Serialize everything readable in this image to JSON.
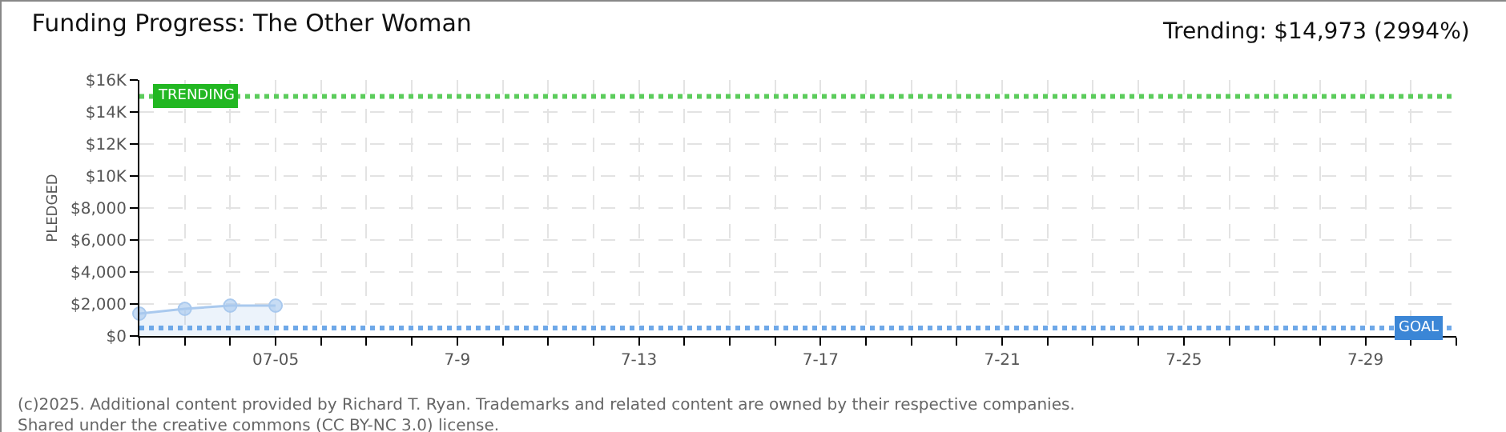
{
  "chart_data": {
    "type": "area",
    "title": "Funding Progress: The Other Woman",
    "subtitle": "Trending: $14,973 (2994%)",
    "ylabel": "PLEDGED",
    "x": [
      "--07-02",
      "--07-03",
      "--07-04",
      "--07-05"
    ],
    "series": [
      {
        "color": "#a9c9ee",
        "values": [
          1400,
          1700,
          1900,
          1900
        ]
      }
    ],
    "marker": "circle",
    "grid": true,
    "xlim": [
      "--07-02",
      "--07-31"
    ],
    "xticks": [
      {
        "value": "--07-02",
        "label": null
      },
      {
        "value": "--07-03",
        "label": null
      },
      {
        "value": "--07-04",
        "label": null
      },
      {
        "value": "--07-05",
        "label": "07-05"
      },
      {
        "value": "--07-06",
        "label": null
      },
      {
        "value": "--07-07",
        "label": null
      },
      {
        "value": "--07-08",
        "label": null
      },
      {
        "value": "--07-09",
        "label": "7-9"
      },
      {
        "value": "--07-10",
        "label": null
      },
      {
        "value": "--07-11",
        "label": null
      },
      {
        "value": "--07-12",
        "label": null
      },
      {
        "value": "--07-13",
        "label": "7-13"
      },
      {
        "value": "--07-14",
        "label": null
      },
      {
        "value": "--07-15",
        "label": null
      },
      {
        "value": "--07-16",
        "label": null
      },
      {
        "value": "--07-17",
        "label": "7-17"
      },
      {
        "value": "--07-18",
        "label": null
      },
      {
        "value": "--07-19",
        "label": null
      },
      {
        "value": "--07-20",
        "label": null
      },
      {
        "value": "--07-21",
        "label": "7-21"
      },
      {
        "value": "--07-22",
        "label": null
      },
      {
        "value": "--07-23",
        "label": null
      },
      {
        "value": "--07-24",
        "label": null
      },
      {
        "value": "--07-25",
        "label": "7-25"
      },
      {
        "value": "--07-26",
        "label": null
      },
      {
        "value": "--07-27",
        "label": null
      },
      {
        "value": "--07-28",
        "label": null
      },
      {
        "value": "--07-29",
        "label": "7-29"
      },
      {
        "value": "--07-30",
        "label": null
      },
      {
        "value": "--07-31",
        "label": null
      }
    ],
    "ylim": [
      0,
      16000
    ],
    "yticks": [
      {
        "value": 0,
        "label": "$0"
      },
      {
        "value": 2000,
        "label": "$2,000"
      },
      {
        "value": 4000,
        "label": "$4,000"
      },
      {
        "value": 6000,
        "label": "$6,000"
      },
      {
        "value": 8000,
        "label": "$8,000"
      },
      {
        "value": 10000,
        "label": "$10K"
      },
      {
        "value": 12000,
        "label": "$12K"
      },
      {
        "value": 14000,
        "label": "$14K"
      },
      {
        "value": 16000,
        "label": "$16K"
      }
    ],
    "ref_lines": [
      {
        "axis": "y",
        "value": 14973,
        "label": "TRENDING",
        "color": "#5ccc5c",
        "line_style": "dotted"
      },
      {
        "axis": "y",
        "value": 500,
        "label": "GOAL",
        "color": "#6ea8e8",
        "line_style": "dotted"
      }
    ],
    "annotations": [
      "(c)2025. Additional content provided by Richard T. Ryan. Trademarks and related content are owned by their respective companies.",
      "Shared under the creative commons (CC BY-NC 3.0) license."
    ]
  }
}
